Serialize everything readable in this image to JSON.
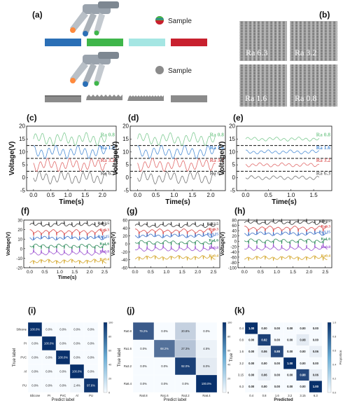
{
  "panels": [
    "(a)",
    "(b)",
    "(c)",
    "(d)",
    "(e)",
    "(f)",
    "(g)",
    "(h)",
    "(i)",
    "(j)",
    "(k)"
  ],
  "a": {
    "sample_label": "Sample",
    "colors": [
      "#2b6fb6",
      "#3fb64a",
      "#a5e6e3",
      "#c8202e"
    ],
    "gray": "#8b8b8b"
  },
  "b": {
    "labels": [
      "Ra 6.3",
      "Ra 3.2",
      "Ra 1.6",
      "Ra 0.8"
    ]
  },
  "cde": {
    "ylabel": "Voltage(V)",
    "xlabel": "Time(s)",
    "c_labels": [
      "Ra 0.8",
      "Ra 1.6",
      "Ra 3.2",
      "Ra 6.3"
    ],
    "d_labels": [
      "Ra 0.8",
      "Ra 1.6",
      "Ra 3.2",
      "Ra 6.3"
    ],
    "e_labels": [
      "Ra 0.8",
      "Ra 1.6",
      "Ra 3.2",
      "Ra 6.3"
    ],
    "colors": [
      "#7fcb93",
      "#4e8fd6",
      "#e16b6b",
      "#777777"
    ]
  },
  "chart_data": [
    {
      "panel": "c",
      "type": "line",
      "xlabel": "Time(s)",
      "ylabel": "Voltage(V)",
      "xlim": [
        -0.2,
        2.4
      ],
      "ylim": [
        -5,
        20
      ],
      "xticks": [
        0.0,
        0.5,
        1.0,
        1.5,
        2.0
      ],
      "yticks": [
        -5,
        0,
        5,
        10,
        15,
        20
      ],
      "dashed_y": [
        2.5,
        7.5,
        12.5
      ],
      "series": [
        {
          "name": "Ra 0.8",
          "base": 15
        },
        {
          "name": "Ra 1.6",
          "base": 10
        },
        {
          "name": "Ra 3.2",
          "base": 5
        },
        {
          "name": "Ra 6.3",
          "base": 0
        }
      ]
    },
    {
      "panel": "d",
      "type": "line",
      "xlabel": "Time(s)",
      "ylabel": "Voltage(V)",
      "xlim": [
        -0.2,
        2.4
      ],
      "ylim": [
        -5,
        20
      ],
      "xticks": [
        0.0,
        0.5,
        1.0,
        1.5,
        2.0
      ],
      "yticks": [
        -5,
        0,
        5,
        10,
        15,
        20
      ],
      "dashed_y": [
        2.5,
        7.5,
        12.5
      ],
      "series": [
        {
          "name": "Ra 0.8",
          "base": 15
        },
        {
          "name": "Ra 1.6",
          "base": 10
        },
        {
          "name": "Ra 3.2",
          "base": 5
        },
        {
          "name": "Ra 6.3",
          "base": 0
        }
      ]
    },
    {
      "panel": "e",
      "type": "line",
      "xlabel": "Time(s)",
      "ylabel": "Voltage(V)",
      "xlim": [
        -0.2,
        1.9
      ],
      "ylim": [
        -5,
        20
      ],
      "xticks": [
        0.0,
        0.5,
        1.0,
        1.5
      ],
      "yticks": [
        -5,
        0,
        5,
        10,
        15,
        20
      ],
      "dashed_y": [
        2.5,
        7.5,
        12.5
      ],
      "series": [
        {
          "name": "Ra 0.8",
          "base": 15
        },
        {
          "name": "Ra 1.6",
          "base": 10
        },
        {
          "name": "Ra 3.2",
          "base": 5
        },
        {
          "name": "Ra 6.3",
          "base": 0
        }
      ]
    },
    {
      "panel": "f",
      "type": "line",
      "xlabel": "Time(s)",
      "ylabel": "Voltage(V)",
      "xlim": [
        -0.2,
        2.7
      ],
      "ylim": [
        -20,
        30
      ],
      "xticks": [
        0.0,
        0.5,
        1.0,
        1.5,
        2.0,
        2.5
      ],
      "yticks": [
        -20,
        -10,
        0,
        10,
        20,
        30
      ],
      "series": [
        {
          "name": "Ra12.5",
          "base": 25
        },
        {
          "name": "Ra6.3",
          "base": 18
        },
        {
          "name": "Ra3.15",
          "base": 11
        },
        {
          "name": "Ra1.6",
          "base": 3
        },
        {
          "name": "Ra0.8",
          "base": -5
        },
        {
          "name": "Ra0.4",
          "base": -13
        }
      ]
    },
    {
      "panel": "g",
      "type": "line",
      "ylabel": "Voltage(V)",
      "xlim": [
        -0.2,
        2.7
      ],
      "ylim": [
        -60,
        60
      ],
      "xticks": [
        0.0,
        0.5,
        1.0,
        1.5,
        2.0,
        2.5
      ],
      "yticks": [
        -60,
        -40,
        -20,
        0,
        20,
        40,
        60
      ],
      "series": [
        {
          "name": "Ra12.5",
          "base": 46
        },
        {
          "name": "Ra6.3",
          "base": 33
        },
        {
          "name": "Ra3.15",
          "base": 20
        },
        {
          "name": "Ra1.6",
          "base": 4
        },
        {
          "name": "Ra0.8",
          "base": -14
        },
        {
          "name": "Ra0.4",
          "base": -34
        }
      ]
    },
    {
      "panel": "h",
      "type": "line",
      "ylabel": "Voltage(V)",
      "xlim": [
        -0.2,
        2.7
      ],
      "ylim": [
        -100,
        80
      ],
      "xticks": [
        0.0,
        0.5,
        1.0,
        1.5,
        2.0,
        2.5
      ],
      "yticks": [
        -100,
        -80,
        -60,
        -40,
        -20,
        0,
        20,
        40,
        60,
        80
      ],
      "series": [
        {
          "name": "Ra12.5",
          "base": 70
        },
        {
          "name": "Ra6.3",
          "base": 50
        },
        {
          "name": "Ra3.15",
          "base": 28
        },
        {
          "name": "Ra1.6",
          "base": 2
        },
        {
          "name": "Ra0.8",
          "base": -28
        },
        {
          "name": "Ra0.4",
          "base": -62
        }
      ]
    },
    {
      "panel": "i",
      "type": "heatmap",
      "xlabel": "Predict label",
      "ylabel": "True label",
      "categories": [
        "Silicone",
        "PI",
        "PVC",
        "Al",
        "PU"
      ],
      "cells": [
        [
          "100.0%",
          "0.0%",
          "0.0%",
          "0.0%",
          "0.0%"
        ],
        [
          "0.0%",
          "100.0%",
          "0.0%",
          "0.0%",
          "0.0%"
        ],
        [
          "0.0%",
          "0.0%",
          "100.0%",
          "0.0%",
          "0.0%"
        ],
        [
          "0.0%",
          "0.0%",
          "0.0%",
          "100.0%",
          "0.0%"
        ],
        [
          "0.0%",
          "0.0%",
          "0.0%",
          "2.4%",
          "97.6%"
        ]
      ],
      "values": [
        [
          100,
          0,
          0,
          0,
          0
        ],
        [
          0,
          100,
          0,
          0,
          0
        ],
        [
          0,
          0,
          100,
          0,
          0
        ],
        [
          0,
          0,
          0,
          100,
          0
        ],
        [
          0,
          0,
          0,
          2.4,
          97.6
        ]
      ],
      "colorbar_ticks": [
        "0",
        "20",
        "40",
        "60",
        "80",
        "100"
      ]
    },
    {
      "panel": "j",
      "type": "heatmap",
      "xlabel": "Predict label",
      "ylabel": "True label",
      "categories": [
        "Ra0.8",
        "Ra1.6",
        "Ra3.2",
        "Ra6.4"
      ],
      "cells": [
        [
          "79.2%",
          "0.0%",
          "20.8%",
          "0.0%"
        ],
        [
          "0.0%",
          "68.2%",
          "27.3%",
          "4.5%"
        ],
        [
          "0.0%",
          "0.0%",
          "92.0%",
          "8.0%"
        ],
        [
          "0.0%",
          "0.0%",
          "0.0%",
          "100.0%"
        ]
      ],
      "values": [
        [
          79.2,
          0,
          20.8,
          0
        ],
        [
          0,
          68.2,
          27.3,
          4.5
        ],
        [
          0,
          0,
          92.0,
          8.0
        ],
        [
          0,
          0,
          0,
          100
        ]
      ],
      "colorbar_ticks": [
        "0",
        "20",
        "40",
        "60",
        "80",
        "100"
      ]
    },
    {
      "panel": "k",
      "type": "heatmap",
      "xlabel": "Predicted",
      "ylabel": "True",
      "categories": [
        "0.4",
        "0.8",
        "1.6",
        "3.2",
        "3.15",
        "6.3"
      ],
      "cells": [
        [
          "1.00",
          "0.00",
          "0.00",
          "0.00",
          "0.00",
          "0.00"
        ],
        [
          "0.00",
          "0.92",
          "0.00",
          "0.00",
          "0.08",
          "0.00"
        ],
        [
          "0.00",
          "0.06",
          "0.88",
          "0.00",
          "0.00",
          "0.06"
        ],
        [
          "0.00",
          "0.00",
          "0.00",
          "1.00",
          "0.00",
          "0.00"
        ],
        [
          "0.00",
          "0.06",
          "0.00",
          "0.00",
          "0.88",
          "0.06"
        ],
        [
          "0.00",
          "0.00",
          "0.00",
          "0.00",
          "0.00",
          "1.00"
        ]
      ],
      "values": [
        [
          1,
          0,
          0,
          0,
          0,
          0
        ],
        [
          0,
          0.92,
          0,
          0,
          0.08,
          0
        ],
        [
          0,
          0.06,
          0.88,
          0,
          0,
          0.06
        ],
        [
          0,
          0,
          0,
          1,
          0,
          0
        ],
        [
          0,
          0.06,
          0,
          0,
          0.88,
          0.06
        ],
        [
          0,
          0,
          0,
          0,
          0,
          1
        ]
      ],
      "colorbar_label": "Proportion",
      "colorbar_ticks": [
        "0.0",
        "0.2",
        "0.4",
        "0.6",
        "0.8",
        "1.0"
      ]
    }
  ]
}
